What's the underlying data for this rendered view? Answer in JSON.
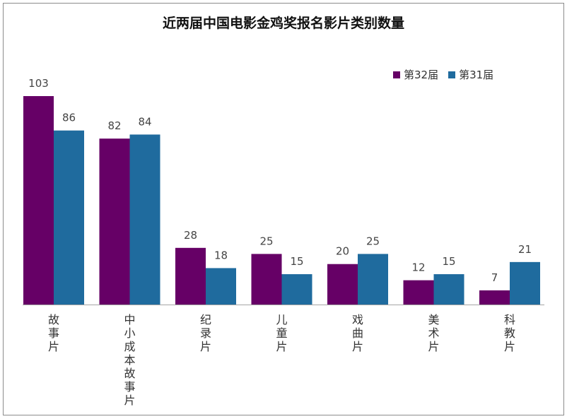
{
  "chart_data": {
    "type": "bar",
    "title": "近两届中国电影金鸡奖报名影片类别数量",
    "categories": [
      "故事片",
      "中小成本故事片",
      "纪录片",
      "儿童片",
      "戏曲片",
      "美术片",
      "科教片"
    ],
    "series": [
      {
        "name": "第32届",
        "color": "#660066",
        "values": [
          103,
          82,
          28,
          25,
          20,
          12,
          7
        ]
      },
      {
        "name": "第31届",
        "color": "#1f6b9e",
        "values": [
          86,
          84,
          18,
          15,
          25,
          15,
          21
        ]
      }
    ],
    "legend_position": "top-right",
    "grid": false
  }
}
